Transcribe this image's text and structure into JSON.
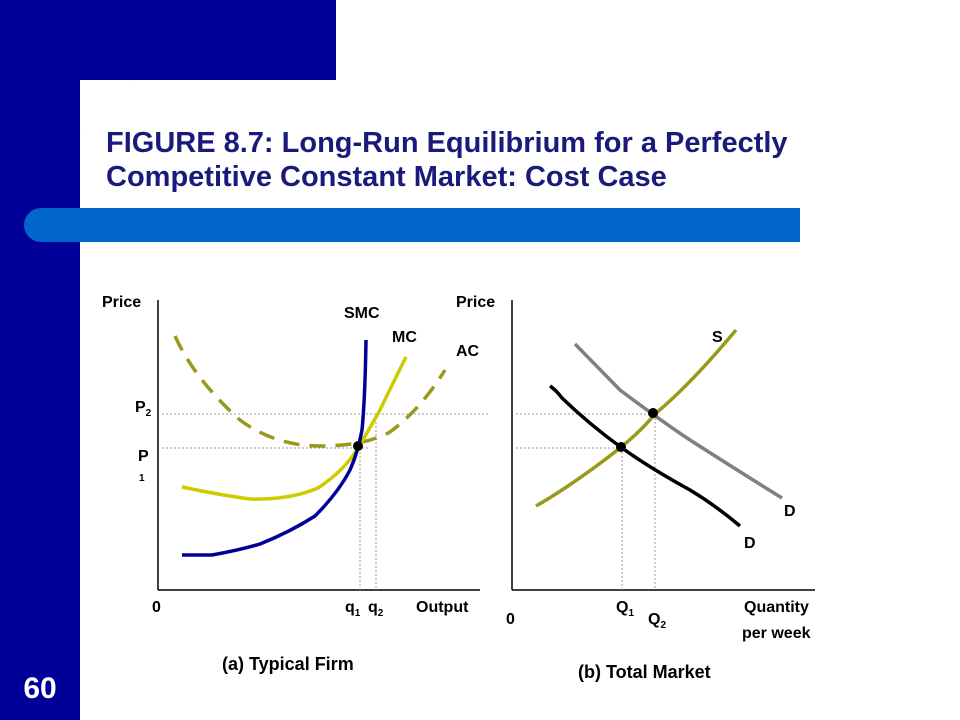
{
  "slide": {
    "title_line1": "FIGURE 8.7: Long-Run Equilibrium for a Perfectly",
    "title_line2": "Competitive Constant Market: Cost Case",
    "number": "60",
    "colors": {
      "navy": "#000099",
      "accent_blue": "#0066cc",
      "olive": "#99991a",
      "firm_mc": "#cccc00",
      "smc": "#000099",
      "demand_old": "#000000",
      "demand_new": "#808080"
    }
  },
  "panel_a": {
    "y_axis_label": "Price",
    "x_axis_label": "Output",
    "origin": "0",
    "p2_main": "P",
    "p2_sub": "2",
    "p1_main": "P",
    "p1_sub": "1",
    "q1_main": "q",
    "q1_sub": "1",
    "q2_main": "q",
    "q2_sub": "2",
    "smc_label": "SMC",
    "mc_label": "MC",
    "ac_label": "AC",
    "caption": "(a) Typical Firm"
  },
  "panel_b": {
    "y_axis_label": "Price",
    "x_axis_label_line1": "Quantity",
    "x_axis_label_line2": "per week",
    "origin": "0",
    "Q1_main": "Q",
    "Q1_sub": "1",
    "Q2_main": "Q",
    "Q2_sub": "2",
    "supply_label": "S",
    "demand_label_new": "D",
    "demand_label_old": "D",
    "caption": "(b) Total Market"
  }
}
